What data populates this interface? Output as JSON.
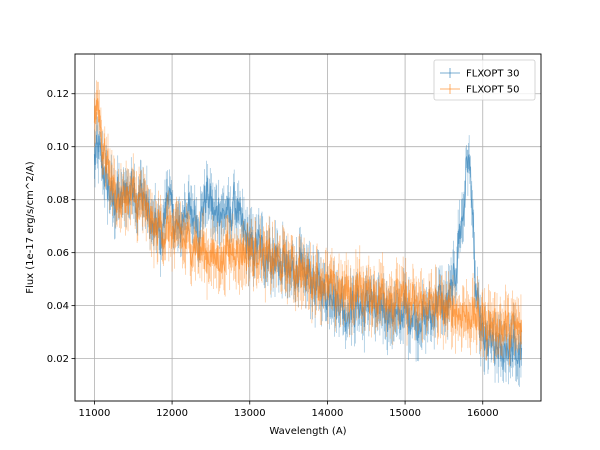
{
  "chart_data": {
    "type": "line",
    "title": "",
    "xlabel": "Wavelength (A)",
    "ylabel": "Flux (1e-17 erg/s/cm^2/A)",
    "xlim": [
      10750,
      16750
    ],
    "ylim": [
      0.004,
      0.135
    ],
    "xticks": [
      11000,
      12000,
      13000,
      14000,
      15000,
      16000
    ],
    "yticks": [
      0.02,
      0.04,
      0.06,
      0.08,
      0.1,
      0.12
    ],
    "xtick_labels": [
      "11000",
      "12000",
      "13000",
      "14000",
      "15000",
      "16000"
    ],
    "ytick_labels": [
      "0.02",
      "0.04",
      "0.06",
      "0.08",
      "0.10",
      "0.12"
    ],
    "grid": true,
    "legend_position": "top-right",
    "series": [
      {
        "name": "FLXOPT 30",
        "color": "#1f77b4",
        "style": "errorbar",
        "x": [
          11000,
          11050,
          11100,
          11150,
          11200,
          11250,
          11300,
          11350,
          11400,
          11450,
          11500,
          11550,
          11600,
          11650,
          11700,
          11750,
          11800,
          11850,
          11900,
          11950,
          12000,
          12050,
          12100,
          12150,
          12200,
          12250,
          12300,
          12350,
          12400,
          12450,
          12500,
          12550,
          12600,
          12650,
          12700,
          12750,
          12800,
          12850,
          12900,
          12950,
          13000,
          13050,
          13100,
          13150,
          13200,
          13250,
          13300,
          13350,
          13400,
          13450,
          13500,
          13550,
          13600,
          13650,
          13700,
          13750,
          13800,
          13850,
          13900,
          13950,
          14000,
          14050,
          14100,
          14150,
          14200,
          14250,
          14300,
          14350,
          14400,
          14450,
          14500,
          14550,
          14600,
          14650,
          14700,
          14750,
          14800,
          14850,
          14900,
          14950,
          15000,
          15050,
          15100,
          15150,
          15200,
          15250,
          15300,
          15350,
          15400,
          15450,
          15500,
          15550,
          15600,
          15650,
          15700,
          15750,
          15800,
          15850,
          15900,
          15950,
          16000,
          16050,
          16100,
          16150,
          16200,
          16250,
          16300,
          16350,
          16400,
          16450,
          16500
        ],
        "y": [
          0.095,
          0.1,
          0.093,
          0.087,
          0.083,
          0.078,
          0.082,
          0.079,
          0.085,
          0.081,
          0.088,
          0.076,
          0.084,
          0.08,
          0.074,
          0.068,
          0.071,
          0.065,
          0.072,
          0.085,
          0.074,
          0.07,
          0.068,
          0.074,
          0.078,
          0.072,
          0.075,
          0.068,
          0.078,
          0.082,
          0.079,
          0.073,
          0.077,
          0.074,
          0.076,
          0.072,
          0.08,
          0.074,
          0.07,
          0.066,
          0.063,
          0.06,
          0.064,
          0.062,
          0.058,
          0.061,
          0.055,
          0.06,
          0.053,
          0.057,
          0.05,
          0.054,
          0.052,
          0.056,
          0.048,
          0.053,
          0.05,
          0.046,
          0.049,
          0.045,
          0.044,
          0.048,
          0.04,
          0.043,
          0.039,
          0.036,
          0.041,
          0.038,
          0.042,
          0.037,
          0.04,
          0.044,
          0.038,
          0.036,
          0.041,
          0.039,
          0.035,
          0.038,
          0.034,
          0.037,
          0.039,
          0.035,
          0.038,
          0.033,
          0.036,
          0.034,
          0.037,
          0.035,
          0.041,
          0.044,
          0.038,
          0.04,
          0.046,
          0.052,
          0.068,
          0.074,
          0.097,
          0.088,
          0.048,
          0.036,
          0.028,
          0.024,
          0.027,
          0.022,
          0.025,
          0.021,
          0.026,
          0.023,
          0.025,
          0.02,
          0.024
        ]
      },
      {
        "name": "FLXOPT 50",
        "color": "#ff7f0e",
        "style": "errorbar",
        "x": [
          11000,
          11050,
          11100,
          11150,
          11200,
          11250,
          11300,
          11350,
          11400,
          11450,
          11500,
          11550,
          11600,
          11650,
          11700,
          11750,
          11800,
          11850,
          11900,
          11950,
          12000,
          12050,
          12100,
          12150,
          12200,
          12250,
          12300,
          12350,
          12400,
          12450,
          12500,
          12550,
          12600,
          12650,
          12700,
          12750,
          12800,
          12850,
          12900,
          12950,
          13000,
          13050,
          13100,
          13150,
          13200,
          13250,
          13300,
          13350,
          13400,
          13450,
          13500,
          13550,
          13600,
          13650,
          13700,
          13750,
          13800,
          13850,
          13900,
          13950,
          14000,
          14050,
          14100,
          14150,
          14200,
          14250,
          14300,
          14350,
          14400,
          14450,
          14500,
          14550,
          14600,
          14650,
          14700,
          14750,
          14800,
          14850,
          14900,
          14950,
          15000,
          15050,
          15100,
          15150,
          15200,
          15250,
          15300,
          15350,
          15400,
          15450,
          15500,
          15550,
          15600,
          15650,
          15700,
          15750,
          15800,
          15850,
          15900,
          15950,
          16000,
          16050,
          16100,
          16150,
          16200,
          16250,
          16300,
          16350,
          16400,
          16450,
          16500
        ],
        "y": [
          0.112,
          0.118,
          0.1,
          0.095,
          0.09,
          0.084,
          0.08,
          0.078,
          0.082,
          0.08,
          0.083,
          0.078,
          0.08,
          0.076,
          0.074,
          0.07,
          0.068,
          0.072,
          0.066,
          0.07,
          0.068,
          0.065,
          0.07,
          0.063,
          0.066,
          0.062,
          0.064,
          0.06,
          0.062,
          0.058,
          0.06,
          0.057,
          0.059,
          0.056,
          0.062,
          0.06,
          0.063,
          0.058,
          0.061,
          0.059,
          0.062,
          0.058,
          0.061,
          0.06,
          0.057,
          0.059,
          0.056,
          0.058,
          0.055,
          0.057,
          0.054,
          0.056,
          0.052,
          0.055,
          0.05,
          0.053,
          0.049,
          0.051,
          0.048,
          0.05,
          0.046,
          0.048,
          0.045,
          0.047,
          0.044,
          0.046,
          0.043,
          0.045,
          0.048,
          0.044,
          0.046,
          0.043,
          0.045,
          0.042,
          0.046,
          0.043,
          0.045,
          0.041,
          0.044,
          0.042,
          0.043,
          0.04,
          0.042,
          0.039,
          0.041,
          0.04,
          0.042,
          0.039,
          0.041,
          0.038,
          0.04,
          0.037,
          0.039,
          0.038,
          0.036,
          0.038,
          0.035,
          0.037,
          0.036,
          0.034,
          0.035,
          0.033,
          0.034,
          0.032,
          0.033,
          0.031,
          0.033,
          0.03,
          0.032,
          0.031,
          0.03
        ]
      }
    ]
  }
}
